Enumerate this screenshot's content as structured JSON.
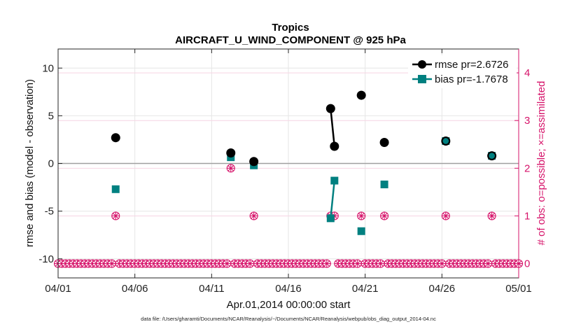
{
  "chart_data": {
    "type": "line",
    "title": "Tropics",
    "subtitle": "AIRCRAFT_U_WIND_COMPONENT @ 925 hPa",
    "xlabel": "Apr.01,2014 00:00:00 start",
    "ylabel": "rmse and bias (model - observation)",
    "y2label": "# of obs: o=possible; ×=assimilated",
    "footnote": "data file: /Users/gharamti/Documents/NCAR/Reanalysis/~/Documents/NCAR/Reanalysis/webpub/obs_diag_output_2014-04.nc",
    "xlim": [
      1,
      31
    ],
    "ylim": [
      -12,
      12
    ],
    "y2lim": [
      -0.3,
      4.5
    ],
    "x_ticks": [
      1,
      6,
      11,
      16,
      21,
      26,
      31
    ],
    "x_tick_labels": [
      "04/01",
      "04/06",
      "04/11",
      "04/16",
      "04/21",
      "04/26",
      "05/01"
    ],
    "y_ticks": [
      -10,
      -5,
      0,
      5,
      10
    ],
    "y_tick_labels": [
      "-10",
      "-5",
      "0",
      "5",
      "10"
    ],
    "y2_ticks": [
      0,
      1,
      2,
      3,
      4
    ],
    "y2_tick_labels": [
      "0",
      "1",
      "2",
      "3",
      "4"
    ],
    "grid": true,
    "legend_position": "top-right",
    "colors": {
      "rmse": "#000000",
      "bias": "#008080",
      "obs": "#d6136a",
      "zero_line": "#a0a0a0",
      "grid": "#e6e6e6"
    },
    "series": [
      {
        "name": "rmse pr=2.6726",
        "x": [
          4.75,
          12.25,
          13.75,
          18.75,
          19.0,
          20.75,
          22.25,
          26.25,
          29.25
        ],
        "values": [
          2.7,
          1.1,
          0.2,
          5.75,
          1.8,
          7.15,
          2.2,
          2.35,
          0.8
        ],
        "connected": [
          [
            3,
            4
          ]
        ]
      },
      {
        "name": "bias pr=-1.7678",
        "x": [
          4.75,
          12.25,
          13.75,
          18.75,
          19.0,
          20.75,
          22.25,
          26.25,
          29.25
        ],
        "values": [
          -2.7,
          0.65,
          -0.2,
          -5.75,
          -1.8,
          -7.1,
          -2.2,
          2.35,
          0.8
        ],
        "connected": [
          [
            3,
            4
          ]
        ]
      }
    ],
    "obs_possible": {
      "x_start": 1.0,
      "x_end": 31.0,
      "step": 0.25,
      "count_default": 0,
      "nonzero": [
        {
          "x": 4.75,
          "count": 1
        },
        {
          "x": 12.25,
          "count": 2
        },
        {
          "x": 13.75,
          "count": 1
        },
        {
          "x": 18.75,
          "count": 1
        },
        {
          "x": 19.0,
          "count": 1
        },
        {
          "x": 20.75,
          "count": 1
        },
        {
          "x": 22.25,
          "count": 1
        },
        {
          "x": 26.25,
          "count": 1
        },
        {
          "x": 29.25,
          "count": 1
        }
      ]
    },
    "obs_assimilated_same_as_possible": true
  }
}
